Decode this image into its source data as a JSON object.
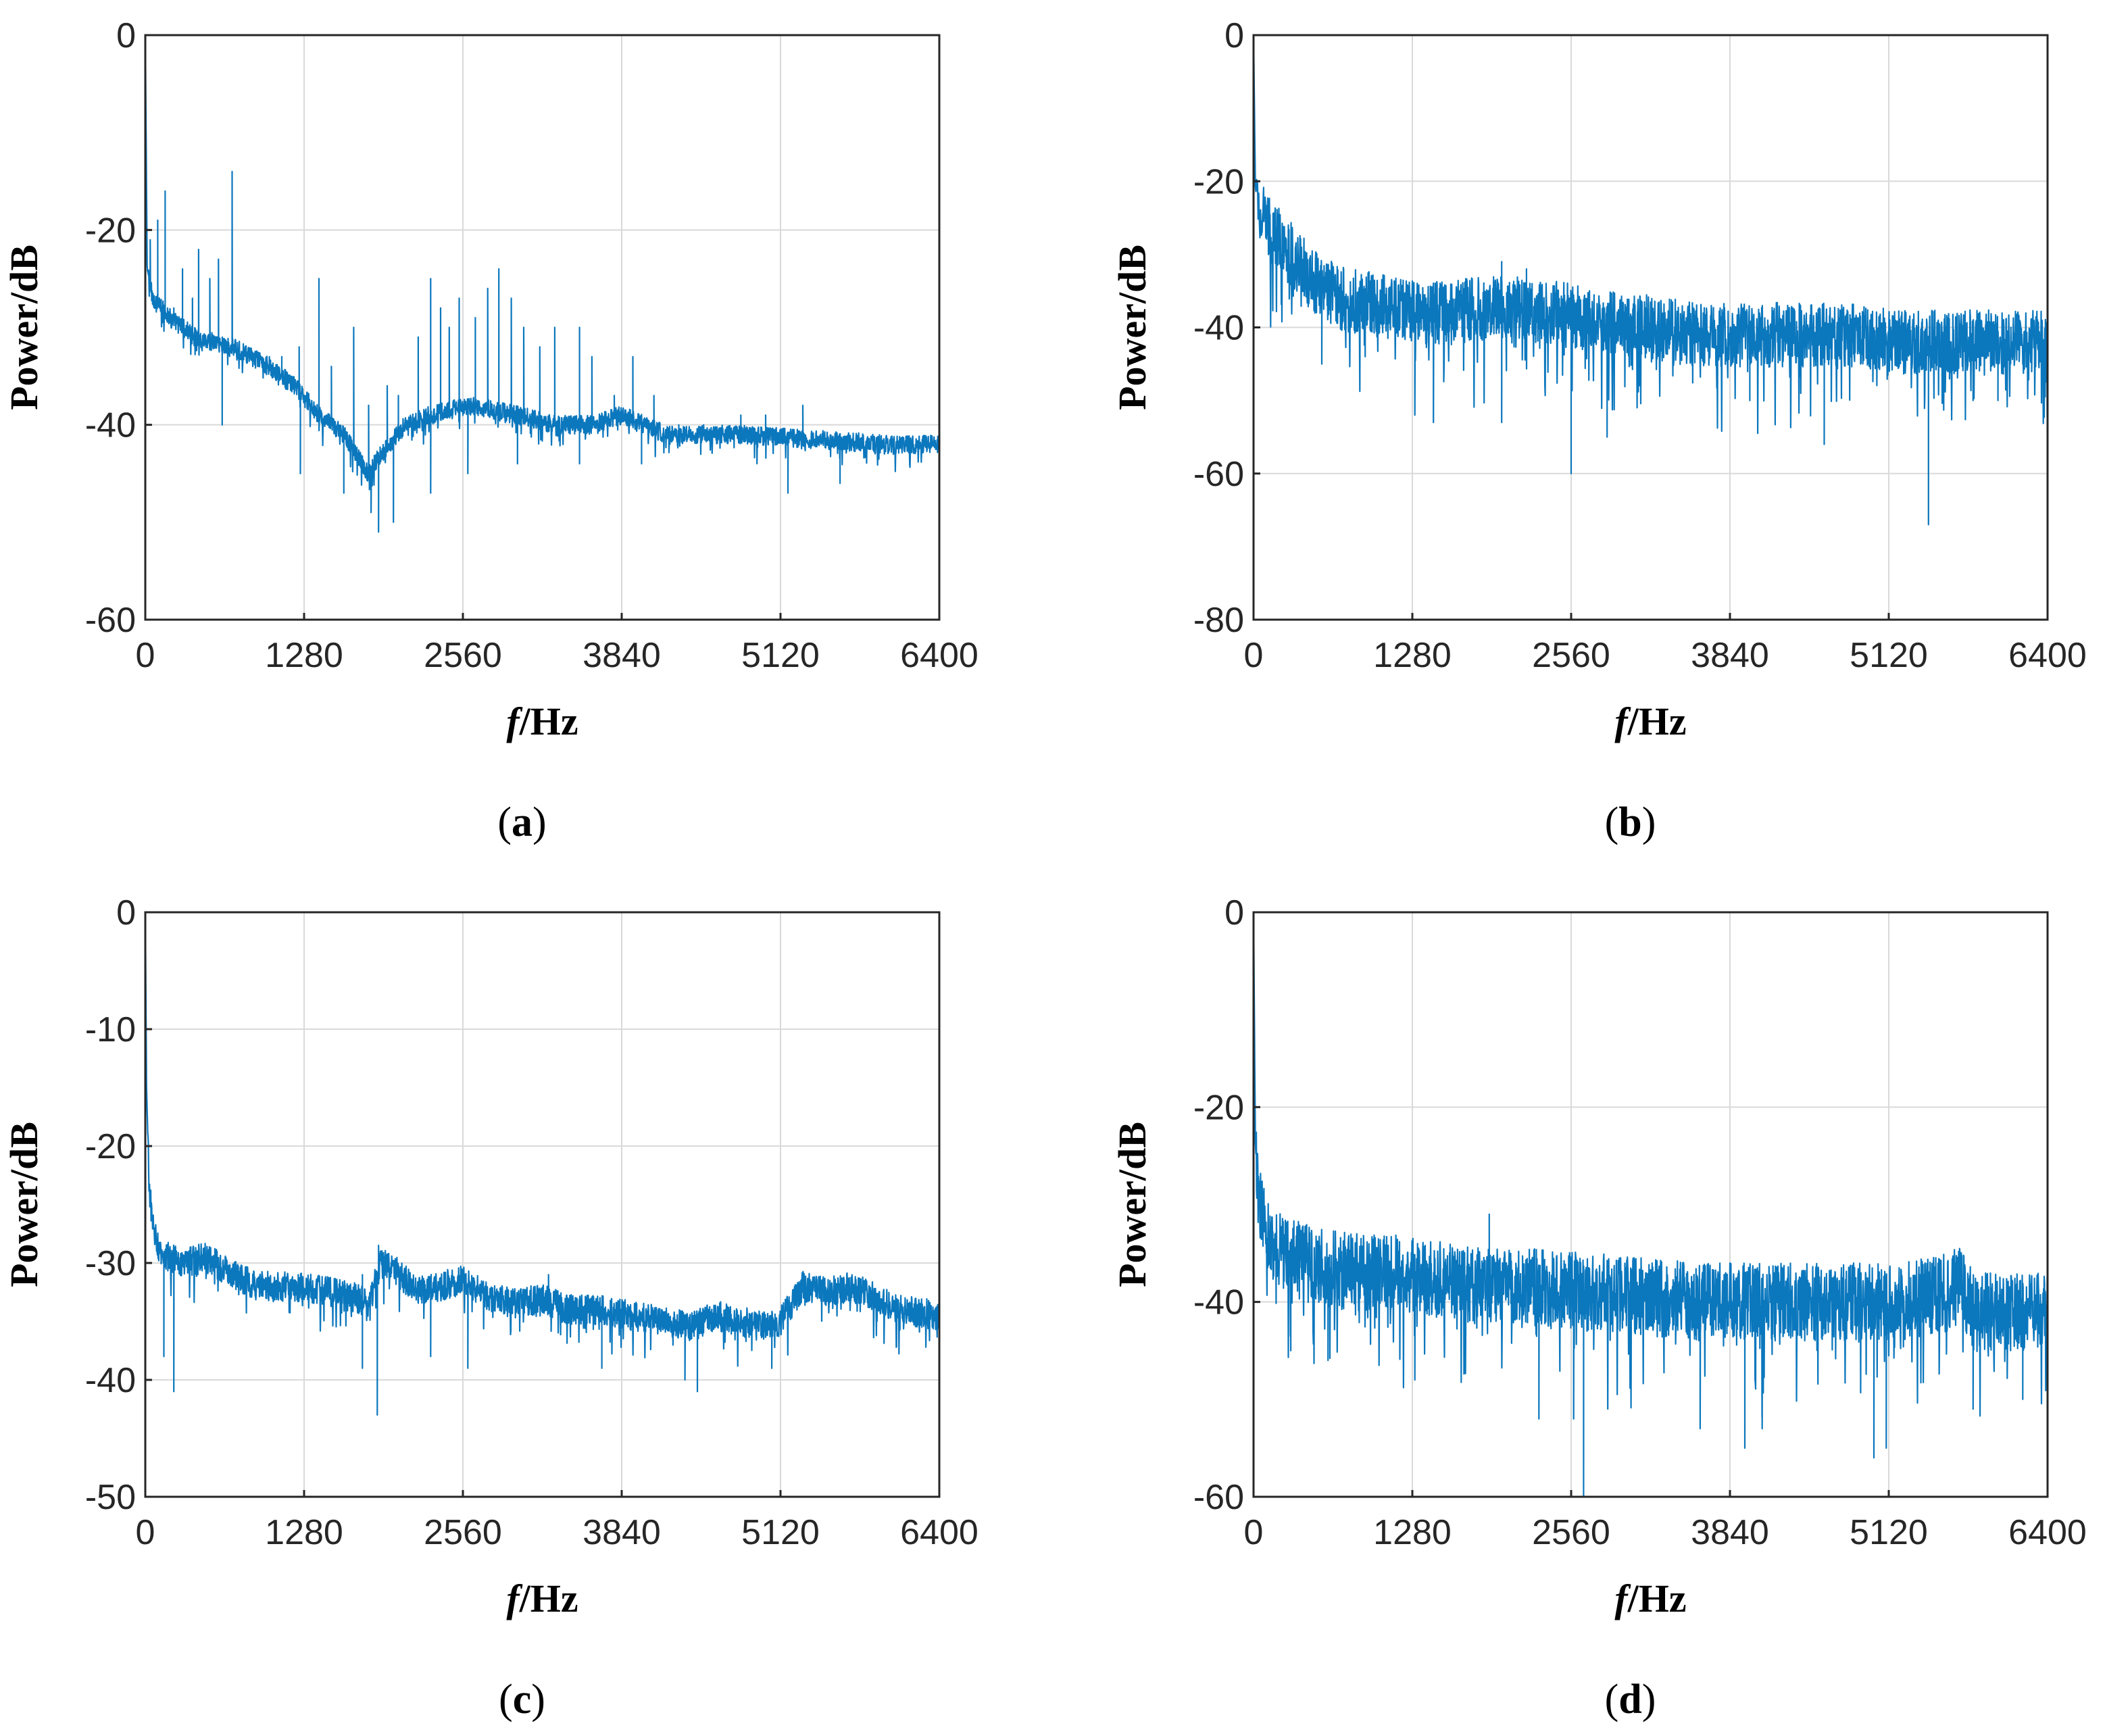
{
  "colors": {
    "line": "#0b77bd",
    "grid": "#d9d9d9",
    "axis": "#262626"
  },
  "chart_data": [
    {
      "panel": "a",
      "type": "line",
      "caption_letter": "a",
      "xlabel_italic": "f",
      "xlabel_rest": "/Hz",
      "ylabel": "Power/dB",
      "xlim": [
        0,
        6400
      ],
      "ylim": [
        -60,
        0
      ],
      "xticks": [
        0,
        1280,
        2560,
        3840,
        5120,
        6400
      ],
      "yticks": [
        -60,
        -40,
        -20,
        0
      ],
      "baseline": [
        [
          0,
          0
        ],
        [
          15,
          -24
        ],
        [
          60,
          -27
        ],
        [
          200,
          -29
        ],
        [
          400,
          -31
        ],
        [
          700,
          -32
        ],
        [
          1000,
          -34
        ],
        [
          1200,
          -36
        ],
        [
          1400,
          -39
        ],
        [
          1600,
          -41
        ],
        [
          1800,
          -45
        ],
        [
          1900,
          -43
        ],
        [
          2100,
          -40
        ],
        [
          2300,
          -39
        ],
        [
          2600,
          -38
        ],
        [
          3000,
          -39
        ],
        [
          3300,
          -40
        ],
        [
          3600,
          -40
        ],
        [
          3840,
          -39
        ],
        [
          4200,
          -41
        ],
        [
          4800,
          -41
        ],
        [
          5400,
          -41.5
        ],
        [
          6000,
          -42
        ],
        [
          6400,
          -42
        ]
      ],
      "noise": 1.2,
      "spikes_up": [
        [
          40,
          -21
        ],
        [
          100,
          -19
        ],
        [
          160,
          -16
        ],
        [
          230,
          -28
        ],
        [
          300,
          -24
        ],
        [
          380,
          -27
        ],
        [
          430,
          -22
        ],
        [
          520,
          -25
        ],
        [
          590,
          -23
        ],
        [
          700,
          -14
        ],
        [
          1000,
          -33
        ],
        [
          1100,
          -33
        ],
        [
          1240,
          -32
        ],
        [
          1400,
          -25
        ],
        [
          1500,
          -34
        ],
        [
          1680,
          -30
        ],
        [
          1800,
          -38
        ],
        [
          1950,
          -36
        ],
        [
          2040,
          -37
        ],
        [
          2200,
          -31
        ],
        [
          2300,
          -25
        ],
        [
          2380,
          -28
        ],
        [
          2450,
          -30
        ],
        [
          2530,
          -27
        ],
        [
          2660,
          -29
        ],
        [
          2760,
          -26
        ],
        [
          2850,
          -24
        ],
        [
          2950,
          -27
        ],
        [
          3050,
          -30
        ],
        [
          3180,
          -32
        ],
        [
          3300,
          -30
        ],
        [
          3500,
          -30
        ],
        [
          3600,
          -33
        ],
        [
          3780,
          -37
        ],
        [
          3930,
          -33
        ],
        [
          4100,
          -37
        ],
        [
          4300,
          -40
        ],
        [
          4500,
          -40
        ],
        [
          4800,
          -39
        ],
        [
          5000,
          -39
        ],
        [
          5300,
          -38
        ]
      ],
      "spikes_down": [
        [
          620,
          -40
        ],
        [
          1250,
          -45
        ],
        [
          1600,
          -47
        ],
        [
          1820,
          -49
        ],
        [
          1880,
          -51
        ],
        [
          2000,
          -50
        ],
        [
          2300,
          -47
        ],
        [
          2600,
          -45
        ],
        [
          3000,
          -44
        ],
        [
          3500,
          -44
        ],
        [
          4000,
          -44
        ],
        [
          5180,
          -47
        ],
        [
          5600,
          -46
        ]
      ]
    },
    {
      "panel": "b",
      "type": "line",
      "caption_letter": "b",
      "xlabel_italic": "f",
      "xlabel_rest": "/Hz",
      "ylabel": "Power/dB",
      "xlim": [
        0,
        6400
      ],
      "ylim": [
        -80,
        0
      ],
      "xticks": [
        0,
        1280,
        2560,
        3840,
        5120,
        6400
      ],
      "yticks": [
        -80,
        -60,
        -40,
        -20,
        0
      ],
      "baseline": [
        [
          0,
          0
        ],
        [
          15,
          -21
        ],
        [
          50,
          -24
        ],
        [
          150,
          -27
        ],
        [
          300,
          -30
        ],
        [
          500,
          -34
        ],
        [
          700,
          -36
        ],
        [
          1000,
          -37
        ],
        [
          1300,
          -38
        ],
        [
          1600,
          -38
        ],
        [
          2000,
          -37
        ],
        [
          2400,
          -38
        ],
        [
          2800,
          -39
        ],
        [
          3200,
          -40
        ],
        [
          3600,
          -41
        ],
        [
          4000,
          -41
        ],
        [
          4400,
          -41
        ],
        [
          4800,
          -41
        ],
        [
          5200,
          -42
        ],
        [
          5600,
          -42
        ],
        [
          6000,
          -42
        ],
        [
          6400,
          -42
        ]
      ],
      "noise": 5.5,
      "spikes_up": [
        [
          200,
          -25
        ],
        [
          2000,
          -31
        ],
        [
          2200,
          -32
        ]
      ],
      "spikes_down": [
        [
          550,
          -45
        ],
        [
          900,
          -44
        ],
        [
          1300,
          -52
        ],
        [
          1450,
          -53
        ],
        [
          2000,
          -53
        ],
        [
          2560,
          -60
        ],
        [
          2850,
          -55
        ],
        [
          4000,
          -50
        ],
        [
          4600,
          -56
        ],
        [
          5440,
          -67
        ],
        [
          5800,
          -50
        ],
        [
          6000,
          -50
        ]
      ]
    },
    {
      "panel": "c",
      "type": "line",
      "caption_letter": "c",
      "xlabel_italic": "f",
      "xlabel_rest": "/Hz",
      "ylabel": "Power/dB",
      "xlim": [
        0,
        6400
      ],
      "ylim": [
        -50,
        0
      ],
      "xticks": [
        0,
        1280,
        2560,
        3840,
        5120,
        6400
      ],
      "yticks": [
        -50,
        -40,
        -30,
        -20,
        -10,
        0
      ],
      "baseline": [
        [
          0,
          0
        ],
        [
          10,
          -15
        ],
        [
          30,
          -23
        ],
        [
          60,
          -27
        ],
        [
          120,
          -29
        ],
        [
          300,
          -30
        ],
        [
          500,
          -29.5
        ],
        [
          700,
          -31
        ],
        [
          900,
          -32
        ],
        [
          1200,
          -32
        ],
        [
          1500,
          -32.5
        ],
        [
          1700,
          -33
        ],
        [
          1800,
          -33.5
        ],
        [
          1900,
          -30
        ],
        [
          2000,
          -30.5
        ],
        [
          2200,
          -32.5
        ],
        [
          2560,
          -31.5
        ],
        [
          2800,
          -33
        ],
        [
          3000,
          -33.5
        ],
        [
          3200,
          -33
        ],
        [
          3400,
          -34
        ],
        [
          3700,
          -34
        ],
        [
          3900,
          -34.5
        ],
        [
          4200,
          -35
        ],
        [
          4400,
          -35.5
        ],
        [
          4600,
          -34.5
        ],
        [
          4800,
          -35
        ],
        [
          5000,
          -35.5
        ],
        [
          5120,
          -35
        ],
        [
          5300,
          -32
        ],
        [
          5500,
          -32.5
        ],
        [
          5700,
          -32
        ],
        [
          5900,
          -33
        ],
        [
          6100,
          -34
        ],
        [
          6400,
          -34.5
        ]
      ],
      "noise": 1.6,
      "spikes_up": [
        [
          1750,
          -31
        ],
        [
          1880,
          -28.5
        ],
        [
          3250,
          -31
        ]
      ],
      "spikes_down": [
        [
          150,
          -38
        ],
        [
          230,
          -41
        ],
        [
          1750,
          -39
        ],
        [
          1870,
          -43
        ],
        [
          2300,
          -38
        ],
        [
          2600,
          -39
        ],
        [
          3680,
          -39
        ],
        [
          4350,
          -40
        ],
        [
          4450,
          -41
        ],
        [
          5050,
          -39
        ]
      ]
    },
    {
      "panel": "d",
      "type": "line",
      "caption_letter": "d",
      "xlabel_italic": "f",
      "xlabel_rest": "/Hz",
      "ylabel": "Power/dB",
      "xlim": [
        0,
        6400
      ],
      "ylim": [
        -60,
        0
      ],
      "xticks": [
        0,
        1280,
        2560,
        3840,
        5120,
        6400
      ],
      "yticks": [
        -60,
        -40,
        -20,
        0
      ],
      "baseline": [
        [
          0,
          0
        ],
        [
          15,
          -24
        ],
        [
          50,
          -30
        ],
        [
          150,
          -34
        ],
        [
          400,
          -36
        ],
        [
          800,
          -37
        ],
        [
          1200,
          -37
        ],
        [
          1600,
          -38
        ],
        [
          2000,
          -38.5
        ],
        [
          2400,
          -38.5
        ],
        [
          2800,
          -39
        ],
        [
          3200,
          -39.5
        ],
        [
          3600,
          -40
        ],
        [
          4000,
          -40
        ],
        [
          4400,
          -40
        ],
        [
          4800,
          -40
        ],
        [
          5200,
          -40
        ],
        [
          5600,
          -39
        ],
        [
          5700,
          -38
        ],
        [
          5800,
          -41
        ],
        [
          6100,
          -41
        ],
        [
          6400,
          -41
        ]
      ],
      "noise": 5,
      "spikes_up": [
        [
          1900,
          -31
        ]
      ],
      "spikes_down": [
        [
          300,
          -45
        ],
        [
          600,
          -46
        ],
        [
          1300,
          -48
        ],
        [
          2300,
          -52
        ],
        [
          2580,
          -52
        ],
        [
          2660,
          -61
        ],
        [
          3600,
          -53
        ],
        [
          3960,
          -55
        ],
        [
          4100,
          -53
        ],
        [
          5000,
          -56
        ],
        [
          5100,
          -55
        ],
        [
          5800,
          -51
        ],
        [
          6200,
          -50
        ]
      ]
    }
  ]
}
